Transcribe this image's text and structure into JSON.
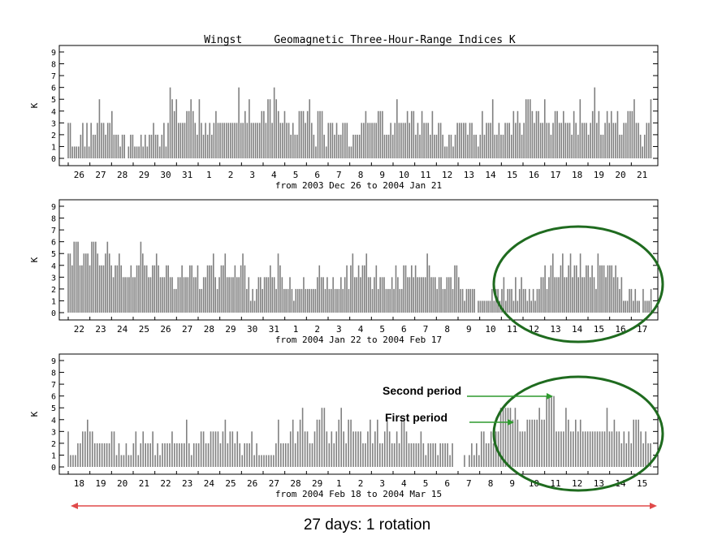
{
  "chart_data": {
    "type": "bar",
    "title": "Wingst     Geomagnetic Three-Hour-Range Indices K",
    "ylabel": "K",
    "ylim": [
      0,
      9
    ],
    "yticks": [
      0,
      1,
      2,
      3,
      4,
      5,
      6,
      7,
      8,
      9
    ],
    "grid": false,
    "panels": [
      {
        "date_range": "from 2003 Dec 26 to 2004 Jan 21",
        "day_labels": [
          "26",
          "27",
          "28",
          "29",
          "30",
          "31",
          "1",
          "2",
          "3",
          "4",
          "5",
          "6",
          "7",
          "8",
          "9",
          "10",
          "11",
          "12",
          "13",
          "14",
          "15",
          "16",
          "17",
          "18",
          "19",
          "20",
          "21"
        ],
        "values": [
          3,
          3,
          1,
          1,
          1,
          1,
          2,
          3,
          1,
          3,
          1,
          3,
          2,
          2,
          3,
          5,
          3,
          3,
          2,
          3,
          3,
          4,
          2,
          2,
          2,
          1,
          2,
          2,
          0,
          1,
          2,
          2,
          1,
          1,
          1,
          2,
          1,
          2,
          1,
          2,
          2,
          3,
          2,
          2,
          1,
          2,
          3,
          1,
          3,
          6,
          5,
          4,
          5,
          3,
          3,
          3,
          3,
          4,
          4,
          5,
          4,
          3,
          2,
          5,
          3,
          2,
          3,
          2,
          3,
          2,
          3,
          4,
          3,
          3,
          3,
          3,
          3,
          3,
          3,
          3,
          3,
          3,
          6,
          3,
          3,
          4,
          3,
          5,
          3,
          3,
          3,
          3,
          3,
          4,
          4,
          3,
          5,
          5,
          3,
          6,
          5,
          4,
          3,
          3,
          4,
          3,
          3,
          2,
          3,
          2,
          2,
          4,
          4,
          4,
          3,
          4,
          5,
          3,
          2,
          1,
          4,
          4,
          4,
          2,
          1,
          3,
          3,
          3,
          2,
          3,
          2,
          2,
          3,
          3,
          3,
          1,
          1,
          2,
          2,
          2,
          2,
          3,
          3,
          4,
          3,
          3,
          3,
          3,
          3,
          4,
          4,
          4,
          2,
          2,
          2,
          3,
          2,
          3,
          5,
          3,
          3,
          3,
          3,
          4,
          3,
          4,
          4,
          2,
          3,
          2,
          4,
          3,
          3,
          3,
          2,
          4,
          2,
          2,
          3,
          3,
          2,
          1,
          1,
          2,
          2,
          1,
          2,
          3,
          3,
          3,
          3,
          3,
          2,
          3,
          3,
          2,
          2,
          1,
          2,
          4,
          2,
          3,
          3,
          3,
          5,
          2,
          2,
          3,
          2,
          2,
          3,
          3,
          3,
          2,
          4,
          3,
          4,
          3,
          2,
          3,
          5,
          5,
          5,
          4,
          3,
          4,
          4,
          3,
          3,
          5,
          3,
          3,
          2,
          3,
          4,
          4,
          3,
          3,
          4,
          3,
          3,
          3,
          2,
          4,
          3,
          2,
          5,
          3,
          3,
          3,
          2,
          3,
          4,
          6,
          3,
          4,
          2,
          2,
          3,
          4,
          3,
          4,
          3,
          3,
          4,
          2,
          2,
          3,
          3,
          4,
          4,
          4,
          5,
          3,
          3,
          2,
          1,
          2,
          3,
          3,
          5
        ]
      },
      {
        "date_range": "from 2004 Jan 22 to 2004 Feb 17",
        "day_labels": [
          "22",
          "23",
          "24",
          "25",
          "26",
          "27",
          "28",
          "29",
          "30",
          "31",
          "1",
          "2",
          "3",
          "4",
          "5",
          "6",
          "7",
          "8",
          "9",
          "10",
          "11",
          "12",
          "13",
          "14",
          "15",
          "16",
          "17"
        ],
        "values": [
          5,
          5,
          4,
          6,
          6,
          6,
          4,
          4,
          5,
          5,
          5,
          4,
          6,
          6,
          6,
          5,
          4,
          4,
          4,
          5,
          6,
          5,
          4,
          3,
          4,
          4,
          5,
          4,
          3,
          3,
          3,
          3,
          4,
          3,
          3,
          4,
          4,
          6,
          5,
          4,
          4,
          3,
          3,
          4,
          4,
          5,
          4,
          3,
          3,
          3,
          4,
          4,
          3,
          3,
          2,
          2,
          3,
          3,
          4,
          3,
          3,
          3,
          4,
          4,
          3,
          3,
          4,
          2,
          2,
          3,
          3,
          4,
          4,
          4,
          5,
          3,
          2,
          3,
          4,
          4,
          5,
          3,
          3,
          3,
          3,
          4,
          3,
          3,
          4,
          5,
          4,
          2,
          3,
          1,
          2,
          1,
          2,
          3,
          3,
          2,
          3,
          3,
          3,
          4,
          3,
          3,
          2,
          5,
          4,
          3,
          2,
          2,
          2,
          3,
          2,
          1,
          2,
          2,
          2,
          2,
          3,
          2,
          2,
          2,
          2,
          2,
          2,
          3,
          4,
          3,
          3,
          2,
          3,
          2,
          2,
          3,
          2,
          2,
          2,
          3,
          2,
          3,
          4,
          2,
          4,
          5,
          3,
          3,
          4,
          3,
          4,
          4,
          5,
          3,
          3,
          2,
          3,
          4,
          2,
          3,
          3,
          3,
          2,
          2,
          2,
          3,
          2,
          4,
          3,
          2,
          2,
          4,
          4,
          3,
          3,
          4,
          3,
          4,
          3,
          3,
          3,
          3,
          3,
          5,
          4,
          3,
          3,
          3,
          2,
          3,
          3,
          2,
          2,
          3,
          3,
          3,
          2,
          4,
          4,
          3,
          2,
          2,
          1,
          2,
          2,
          2,
          2,
          2,
          0,
          1,
          1,
          1,
          1,
          1,
          1,
          1,
          2,
          1,
          2,
          2,
          1,
          2,
          3,
          1,
          2,
          2,
          2,
          1,
          3,
          1,
          2,
          3,
          2,
          2,
          1,
          2,
          1,
          2,
          1,
          2,
          2,
          3,
          3,
          4,
          2,
          3,
          4,
          5,
          3,
          3,
          3,
          4,
          5,
          3,
          3,
          4,
          5,
          3,
          4,
          4,
          3,
          5,
          3,
          3,
          4,
          4,
          3,
          4,
          3,
          2,
          5,
          4,
          4,
          4,
          3,
          4,
          4,
          4,
          3,
          4,
          3,
          2,
          3,
          1,
          1,
          1,
          2,
          2,
          1,
          2,
          1,
          1,
          0,
          2,
          1,
          1,
          1,
          2
        ]
      },
      {
        "date_range": "from 2004 Feb 18 to 2004 Mar 15",
        "day_labels": [
          "18",
          "19",
          "20",
          "21",
          "22",
          "23",
          "24",
          "25",
          "26",
          "27",
          "28",
          "29",
          "1",
          "2",
          "3",
          "4",
          "5",
          "6",
          "7",
          "8",
          "9",
          "10",
          "11",
          "12",
          "13",
          "14",
          "15"
        ],
        "values": [
          3,
          1,
          1,
          1,
          2,
          2,
          3,
          3,
          4,
          3,
          3,
          2,
          2,
          2,
          2,
          2,
          2,
          2,
          3,
          3,
          1,
          2,
          1,
          1,
          2,
          1,
          1,
          2,
          3,
          1,
          2,
          3,
          2,
          2,
          2,
          3,
          1,
          2,
          1,
          2,
          2,
          2,
          2,
          3,
          2,
          2,
          2,
          2,
          2,
          4,
          2,
          1,
          2,
          2,
          2,
          3,
          3,
          2,
          2,
          3,
          3,
          3,
          3,
          2,
          3,
          4,
          2,
          3,
          3,
          2,
          3,
          2,
          1,
          2,
          2,
          2,
          3,
          1,
          2,
          1,
          1,
          1,
          1,
          1,
          1,
          1,
          2,
          4,
          2,
          2,
          2,
          2,
          3,
          4,
          2,
          3,
          4,
          5,
          3,
          3,
          2,
          2,
          3,
          4,
          4,
          5,
          5,
          3,
          2,
          3,
          2,
          3,
          4,
          5,
          3,
          2,
          4,
          4,
          3,
          3,
          3,
          3,
          2,
          2,
          3,
          4,
          2,
          3,
          4,
          2,
          2,
          3,
          4,
          3,
          2,
          2,
          3,
          2,
          4,
          4,
          3,
          2,
          2,
          2,
          2,
          2,
          3,
          2,
          1,
          2,
          2,
          2,
          2,
          1,
          2,
          2,
          2,
          2,
          1,
          2,
          0,
          0,
          0,
          0,
          1,
          0,
          1,
          2,
          1,
          2,
          1,
          3,
          3,
          2,
          2,
          3,
          2,
          3,
          3,
          5,
          5,
          5,
          5,
          5,
          4,
          5,
          4,
          3,
          3,
          3,
          4,
          4,
          4,
          4,
          4,
          5,
          4,
          4,
          6,
          6,
          6,
          6,
          3,
          3,
          3,
          3,
          5,
          4,
          3,
          3,
          4,
          3,
          4,
          3,
          3,
          3,
          3,
          3,
          3,
          3,
          3,
          3,
          3,
          5,
          3,
          3,
          4,
          3,
          3,
          2,
          3,
          2,
          3,
          2,
          4,
          4,
          4,
          3,
          2,
          3,
          2,
          2
        ]
      }
    ]
  },
  "annotations": {
    "second_period": "Second period",
    "first_period": "First period",
    "caption": "27 days: 1 rotation"
  },
  "colors": {
    "bar": "#808080",
    "frame": "#000000",
    "highlight_ellipse": "#1f6b1f",
    "period_arrow": "#2f9a2f",
    "rotation_arrow": "#e04a4a"
  }
}
